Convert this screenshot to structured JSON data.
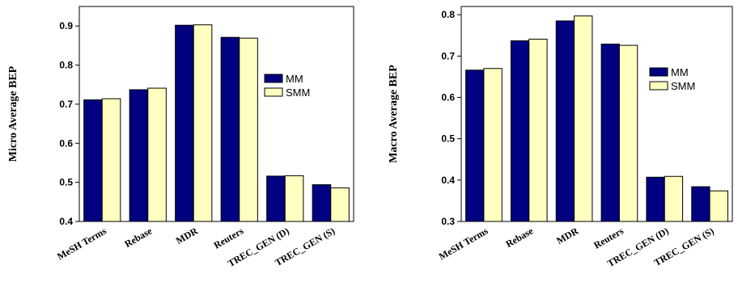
{
  "chart_data": [
    {
      "type": "bar",
      "title": "",
      "xlabel": "",
      "ylabel": "Micro Average BEP",
      "ylim": [
        0.4,
        0.95
      ],
      "yticks": [
        0.4,
        0.5,
        0.6,
        0.7,
        0.8,
        0.9
      ],
      "grid": false,
      "legend_position": "right",
      "categories": [
        "MeSH Terms",
        "Rebase",
        "MDR",
        "Reuters",
        "TREC_GEN (D)",
        "TREC_GEN (S)"
      ],
      "series": [
        {
          "name": "MM",
          "color": "#000080",
          "values": [
            0.711,
            0.737,
            0.902,
            0.871,
            0.516,
            0.494
          ]
        },
        {
          "name": "SMM",
          "color": "#FFFFC0",
          "values": [
            0.714,
            0.741,
            0.903,
            0.869,
            0.517,
            0.486
          ]
        }
      ]
    },
    {
      "type": "bar",
      "title": "",
      "xlabel": "",
      "ylabel": "Macro Average BEP",
      "ylim": [
        0.3,
        0.82
      ],
      "yticks": [
        0.3,
        0.4,
        0.5,
        0.6,
        0.7,
        0.8
      ],
      "grid": false,
      "legend_position": "right",
      "categories": [
        "MeSH Terms",
        "Rebase",
        "MDR",
        "Reuters",
        "TREC_GEN (D)",
        "TREC_GEN (S)"
      ],
      "series": [
        {
          "name": "MM",
          "color": "#000080",
          "values": [
            0.666,
            0.737,
            0.785,
            0.729,
            0.407,
            0.384
          ]
        },
        {
          "name": "SMM",
          "color": "#FFFFC0",
          "values": [
            0.67,
            0.741,
            0.797,
            0.726,
            0.409,
            0.374
          ]
        }
      ]
    }
  ]
}
